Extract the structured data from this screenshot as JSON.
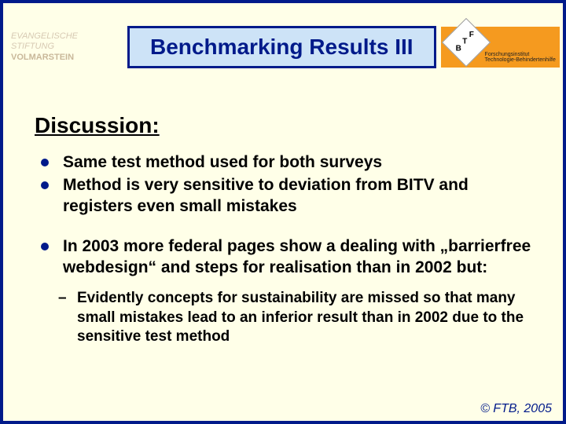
{
  "colors": {
    "slide_bg": "#ffffe8",
    "slide_border": "#001a8a",
    "title_box_bg": "#cde3f7",
    "title_box_border": "#001a8a",
    "title_text": "#001a8a",
    "right_logo_bg": "#f59a1f",
    "left_logo_text": "#d7c9b3",
    "volmarstein_text": "#c9b89a",
    "heading_text": "#000000",
    "body_text": "#000000",
    "bullet_color": "#001a8a",
    "footer_text": "#001a8a",
    "ftb_caption": "#222222"
  },
  "left_logo": {
    "line1": "EVANGELISCHE",
    "line2": "STIFTUNG",
    "line3": "VOLMARSTEIN"
  },
  "title": "Benchmarking Results III",
  "right_logo": {
    "f": "F",
    "t": "T",
    "b": "B",
    "caption": "Forschungsinstitut Technologie-Behindertenhilfe"
  },
  "heading": "Discussion:",
  "bullets": [
    "Same test method used for both surveys",
    "Method is very sensitive to deviation from BITV and registers even small mistakes",
    "In 2003 more federal pages show a dealing with „barrierfree webdesign“ and steps for realisation than in 2002 but:"
  ],
  "sub_bullet": "Evidently concepts for sustainability are missed so that many small mistakes lead to an inferior result than in 2002 due to the sensitive test method",
  "footer": "© FTB, 2005"
}
